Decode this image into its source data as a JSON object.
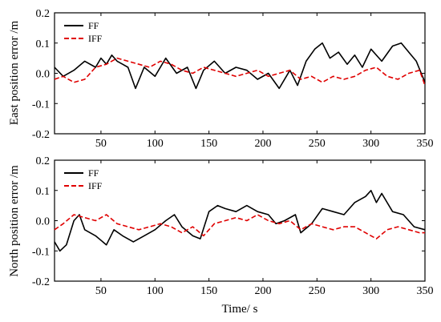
{
  "chart_data": [
    {
      "type": "line",
      "title": "",
      "xlabel": "",
      "ylabel": "East position error /m",
      "xlim": [
        7,
        350
      ],
      "ylim": [
        -0.2,
        0.2
      ],
      "xticks": [
        "50",
        "100",
        "150",
        "200",
        "250",
        "300",
        "350"
      ],
      "yticks": [
        "-0.2",
        "-0.1",
        "0.0",
        "0.1",
        "0.2"
      ],
      "legend": "top-left",
      "series": [
        {
          "name": "FF",
          "color": "#000000",
          "dash": "solid",
          "x": [
            7,
            15,
            25,
            35,
            45,
            50,
            55,
            60,
            65,
            70,
            75,
            82,
            90,
            100,
            110,
            120,
            130,
            138,
            145,
            155,
            165,
            175,
            185,
            195,
            205,
            215,
            225,
            232,
            240,
            248,
            255,
            262,
            270,
            278,
            285,
            292,
            300,
            310,
            320,
            328,
            335,
            342,
            350
          ],
          "y": [
            0.02,
            -0.01,
            0.01,
            0.04,
            0.02,
            0.05,
            0.03,
            0.06,
            0.04,
            0.03,
            0.02,
            -0.05,
            0.02,
            -0.01,
            0.05,
            0.0,
            0.02,
            -0.05,
            0.01,
            0.04,
            0.0,
            0.02,
            0.01,
            -0.02,
            0.0,
            -0.05,
            0.01,
            -0.04,
            0.04,
            0.08,
            0.1,
            0.05,
            0.07,
            0.03,
            0.06,
            0.02,
            0.08,
            0.04,
            0.09,
            0.1,
            0.07,
            0.04,
            -0.03
          ]
        },
        {
          "name": "IFF",
          "color": "#e00000",
          "dash": "dashed",
          "x": [
            7,
            15,
            25,
            35,
            45,
            55,
            65,
            75,
            85,
            95,
            105,
            115,
            125,
            135,
            145,
            155,
            165,
            175,
            185,
            195,
            205,
            215,
            225,
            235,
            245,
            255,
            265,
            275,
            285,
            295,
            305,
            315,
            325,
            335,
            345,
            350
          ],
          "y": [
            -0.02,
            -0.01,
            -0.03,
            -0.02,
            0.02,
            0.03,
            0.05,
            0.04,
            0.03,
            0.02,
            0.04,
            0.03,
            0.01,
            0.0,
            0.02,
            0.01,
            0.0,
            -0.01,
            0.0,
            0.01,
            -0.01,
            0.0,
            0.01,
            -0.02,
            -0.01,
            -0.03,
            -0.01,
            -0.02,
            -0.01,
            0.01,
            0.02,
            -0.01,
            -0.02,
            0.0,
            0.01,
            -0.04
          ]
        }
      ]
    },
    {
      "type": "line",
      "title": "",
      "xlabel": "Time/ s",
      "ylabel": "North position error /m",
      "xlim": [
        7,
        350
      ],
      "ylim": [
        -0.2,
        0.2
      ],
      "xticks": [
        "50",
        "100",
        "150",
        "200",
        "250",
        "300",
        "350"
      ],
      "yticks": [
        "-0.2",
        "-0.1",
        "0.0",
        "0.1",
        "0.2"
      ],
      "legend": "top-left",
      "series": [
        {
          "name": "FF",
          "color": "#000000",
          "dash": "solid",
          "x": [
            7,
            12,
            18,
            25,
            30,
            35,
            45,
            55,
            62,
            70,
            80,
            90,
            100,
            110,
            118,
            125,
            135,
            142,
            150,
            158,
            165,
            175,
            185,
            195,
            205,
            212,
            220,
            230,
            235,
            245,
            255,
            265,
            275,
            285,
            295,
            300,
            305,
            310,
            320,
            330,
            340,
            350
          ],
          "y": [
            -0.07,
            -0.1,
            -0.08,
            0.0,
            0.02,
            -0.03,
            -0.05,
            -0.08,
            -0.03,
            -0.05,
            -0.07,
            -0.05,
            -0.03,
            0.0,
            0.02,
            -0.02,
            -0.05,
            -0.06,
            0.03,
            0.05,
            0.04,
            0.03,
            0.05,
            0.03,
            0.02,
            -0.01,
            0.0,
            0.02,
            -0.04,
            -0.01,
            0.04,
            0.03,
            0.02,
            0.06,
            0.08,
            0.1,
            0.06,
            0.09,
            0.03,
            0.02,
            -0.02,
            -0.03
          ]
        },
        {
          "name": "IFF",
          "color": "#e00000",
          "dash": "dashed",
          "x": [
            7,
            15,
            25,
            35,
            45,
            55,
            65,
            75,
            85,
            95,
            105,
            115,
            125,
            135,
            145,
            155,
            165,
            175,
            185,
            195,
            205,
            215,
            225,
            235,
            245,
            255,
            265,
            275,
            285,
            295,
            305,
            315,
            325,
            335,
            345,
            350
          ],
          "y": [
            -0.03,
            -0.01,
            0.02,
            0.01,
            0.0,
            0.02,
            -0.01,
            -0.02,
            -0.03,
            -0.02,
            -0.01,
            -0.02,
            -0.04,
            -0.02,
            -0.05,
            -0.01,
            0.0,
            0.01,
            0.0,
            0.02,
            0.0,
            -0.01,
            0.0,
            -0.03,
            -0.01,
            -0.02,
            -0.03,
            -0.02,
            -0.02,
            -0.04,
            -0.06,
            -0.03,
            -0.02,
            -0.03,
            -0.04,
            -0.04
          ]
        }
      ]
    }
  ]
}
